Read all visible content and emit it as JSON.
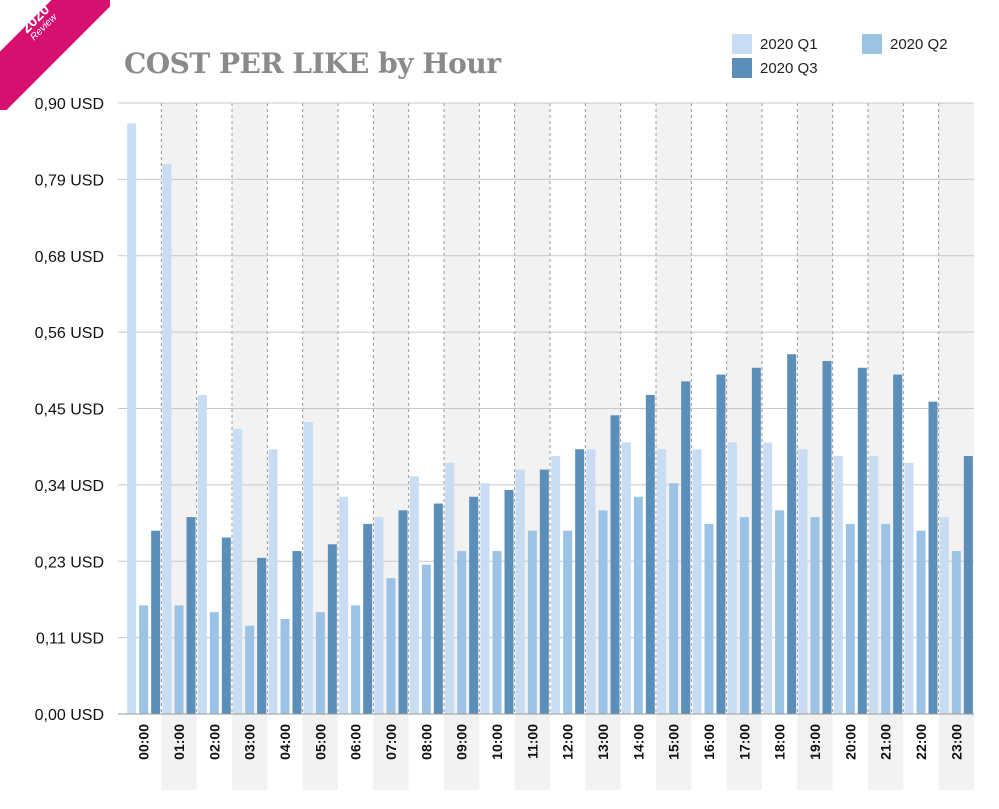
{
  "badge": {
    "year": "2020",
    "subtitle": "Review"
  },
  "title": "COST PER LIKE by Hour",
  "legend": [
    {
      "label": "2020 Q1",
      "color": "#c8ddf3"
    },
    {
      "label": "2020 Q2",
      "color": "#9ac3e6"
    },
    {
      "label": "2020 Q3",
      "color": "#5b8fb9"
    }
  ],
  "colors": {
    "band": "#f2f2f2",
    "grid": "#c8c8c8",
    "badge": "#d6106e",
    "title": "#8a8a8a"
  },
  "chart_data": {
    "type": "bar",
    "title": "COST PER LIKE by Hour",
    "xlabel": "",
    "ylabel": "",
    "ylim": [
      0,
      0.9
    ],
    "grid": true,
    "legend_position": "top-right",
    "y_ticks": [
      "0,00 USD",
      "0,11 USD",
      "0,23 USD",
      "0,34 USD",
      "0,45 USD",
      "0,56 USD",
      "0,68 USD",
      "0,79 USD",
      "0,90 USD"
    ],
    "categories": [
      "00:00",
      "01:00",
      "02:00",
      "03:00",
      "04:00",
      "05:00",
      "06:00",
      "07:00",
      "08:00",
      "09:00",
      "10:00",
      "11:00",
      "12:00",
      "13:00",
      "14:00",
      "15:00",
      "16:00",
      "17:00",
      "18:00",
      "19:00",
      "20:00",
      "21:00",
      "22:00",
      "23:00"
    ],
    "series": [
      {
        "name": "2020 Q1",
        "color": "#c8ddf3",
        "values": [
          0.87,
          0.81,
          0.47,
          0.42,
          0.39,
          0.43,
          0.32,
          0.29,
          0.35,
          0.37,
          0.34,
          0.36,
          0.38,
          0.39,
          0.4,
          0.39,
          0.39,
          0.4,
          0.4,
          0.39,
          0.38,
          0.38,
          0.37,
          0.29
        ]
      },
      {
        "name": "2020 Q2",
        "color": "#9ac3e6",
        "values": [
          0.16,
          0.16,
          0.15,
          0.13,
          0.14,
          0.15,
          0.16,
          0.2,
          0.22,
          0.24,
          0.24,
          0.27,
          0.27,
          0.3,
          0.32,
          0.34,
          0.28,
          0.29,
          0.3,
          0.29,
          0.28,
          0.28,
          0.27,
          0.24
        ]
      },
      {
        "name": "2020 Q3",
        "color": "#5b8fb9",
        "values": [
          0.27,
          0.29,
          0.26,
          0.23,
          0.24,
          0.25,
          0.28,
          0.3,
          0.31,
          0.32,
          0.33,
          0.36,
          0.39,
          0.44,
          0.47,
          0.49,
          0.5,
          0.51,
          0.53,
          0.52,
          0.51,
          0.5,
          0.46,
          0.38
        ]
      }
    ]
  }
}
